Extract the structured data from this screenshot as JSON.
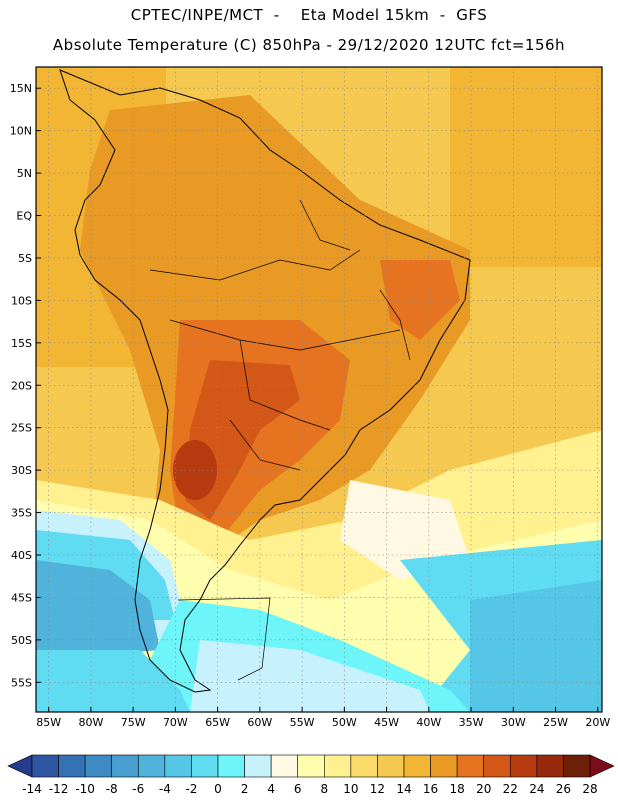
{
  "header": {
    "line1": "CPTEC/INPE/MCT  -    Eta Model 15km  -  GFS",
    "line2": "Absolute Temperature (C) 850hPa - 29/12/2020 12UTC fct=156h"
  },
  "map": {
    "lat_labels": [
      "15N",
      "10N",
      "5N",
      "EQ",
      "5S",
      "10S",
      "15S",
      "20S",
      "25S",
      "30S",
      "35S",
      "40S",
      "45S",
      "50S",
      "55S"
    ],
    "lon_labels": [
      "85W",
      "80W",
      "75W",
      "70W",
      "65W",
      "60W",
      "55W",
      "50W",
      "45W",
      "40W",
      "35W",
      "30W",
      "25W",
      "20W"
    ],
    "lat_values": [
      15,
      10,
      5,
      0,
      -5,
      -10,
      -15,
      -20,
      -25,
      -30,
      -35,
      -40,
      -45,
      -50,
      -55
    ],
    "lon_values": [
      -85,
      -80,
      -75,
      -70,
      -65,
      -60,
      -55,
      -50,
      -45,
      -40,
      -35,
      -30,
      -25,
      -20
    ]
  },
  "colorbar": {
    "labels": [
      "-14",
      "-12",
      "-10",
      "-8",
      "-6",
      "-4",
      "-2",
      "0",
      "2",
      "4",
      "6",
      "8",
      "10",
      "12",
      "14",
      "16",
      "18",
      "20",
      "22",
      "24",
      "26",
      "28"
    ],
    "colors": [
      "#253c8c",
      "#2e56a3",
      "#3571b5",
      "#3e8bc3",
      "#479ecf",
      "#4fb3dc",
      "#55c6e6",
      "#5fdcf2",
      "#6ef5fa",
      "#c7f2fd",
      "#fff8e3",
      "#fffdae",
      "#fff090",
      "#f9da6a",
      "#f5c84f",
      "#f2b534",
      "#e89a25",
      "#e5731f",
      "#d35716",
      "#b63b10",
      "#972a0c",
      "#6d1f07",
      "#7a0d1a"
    ]
  }
}
